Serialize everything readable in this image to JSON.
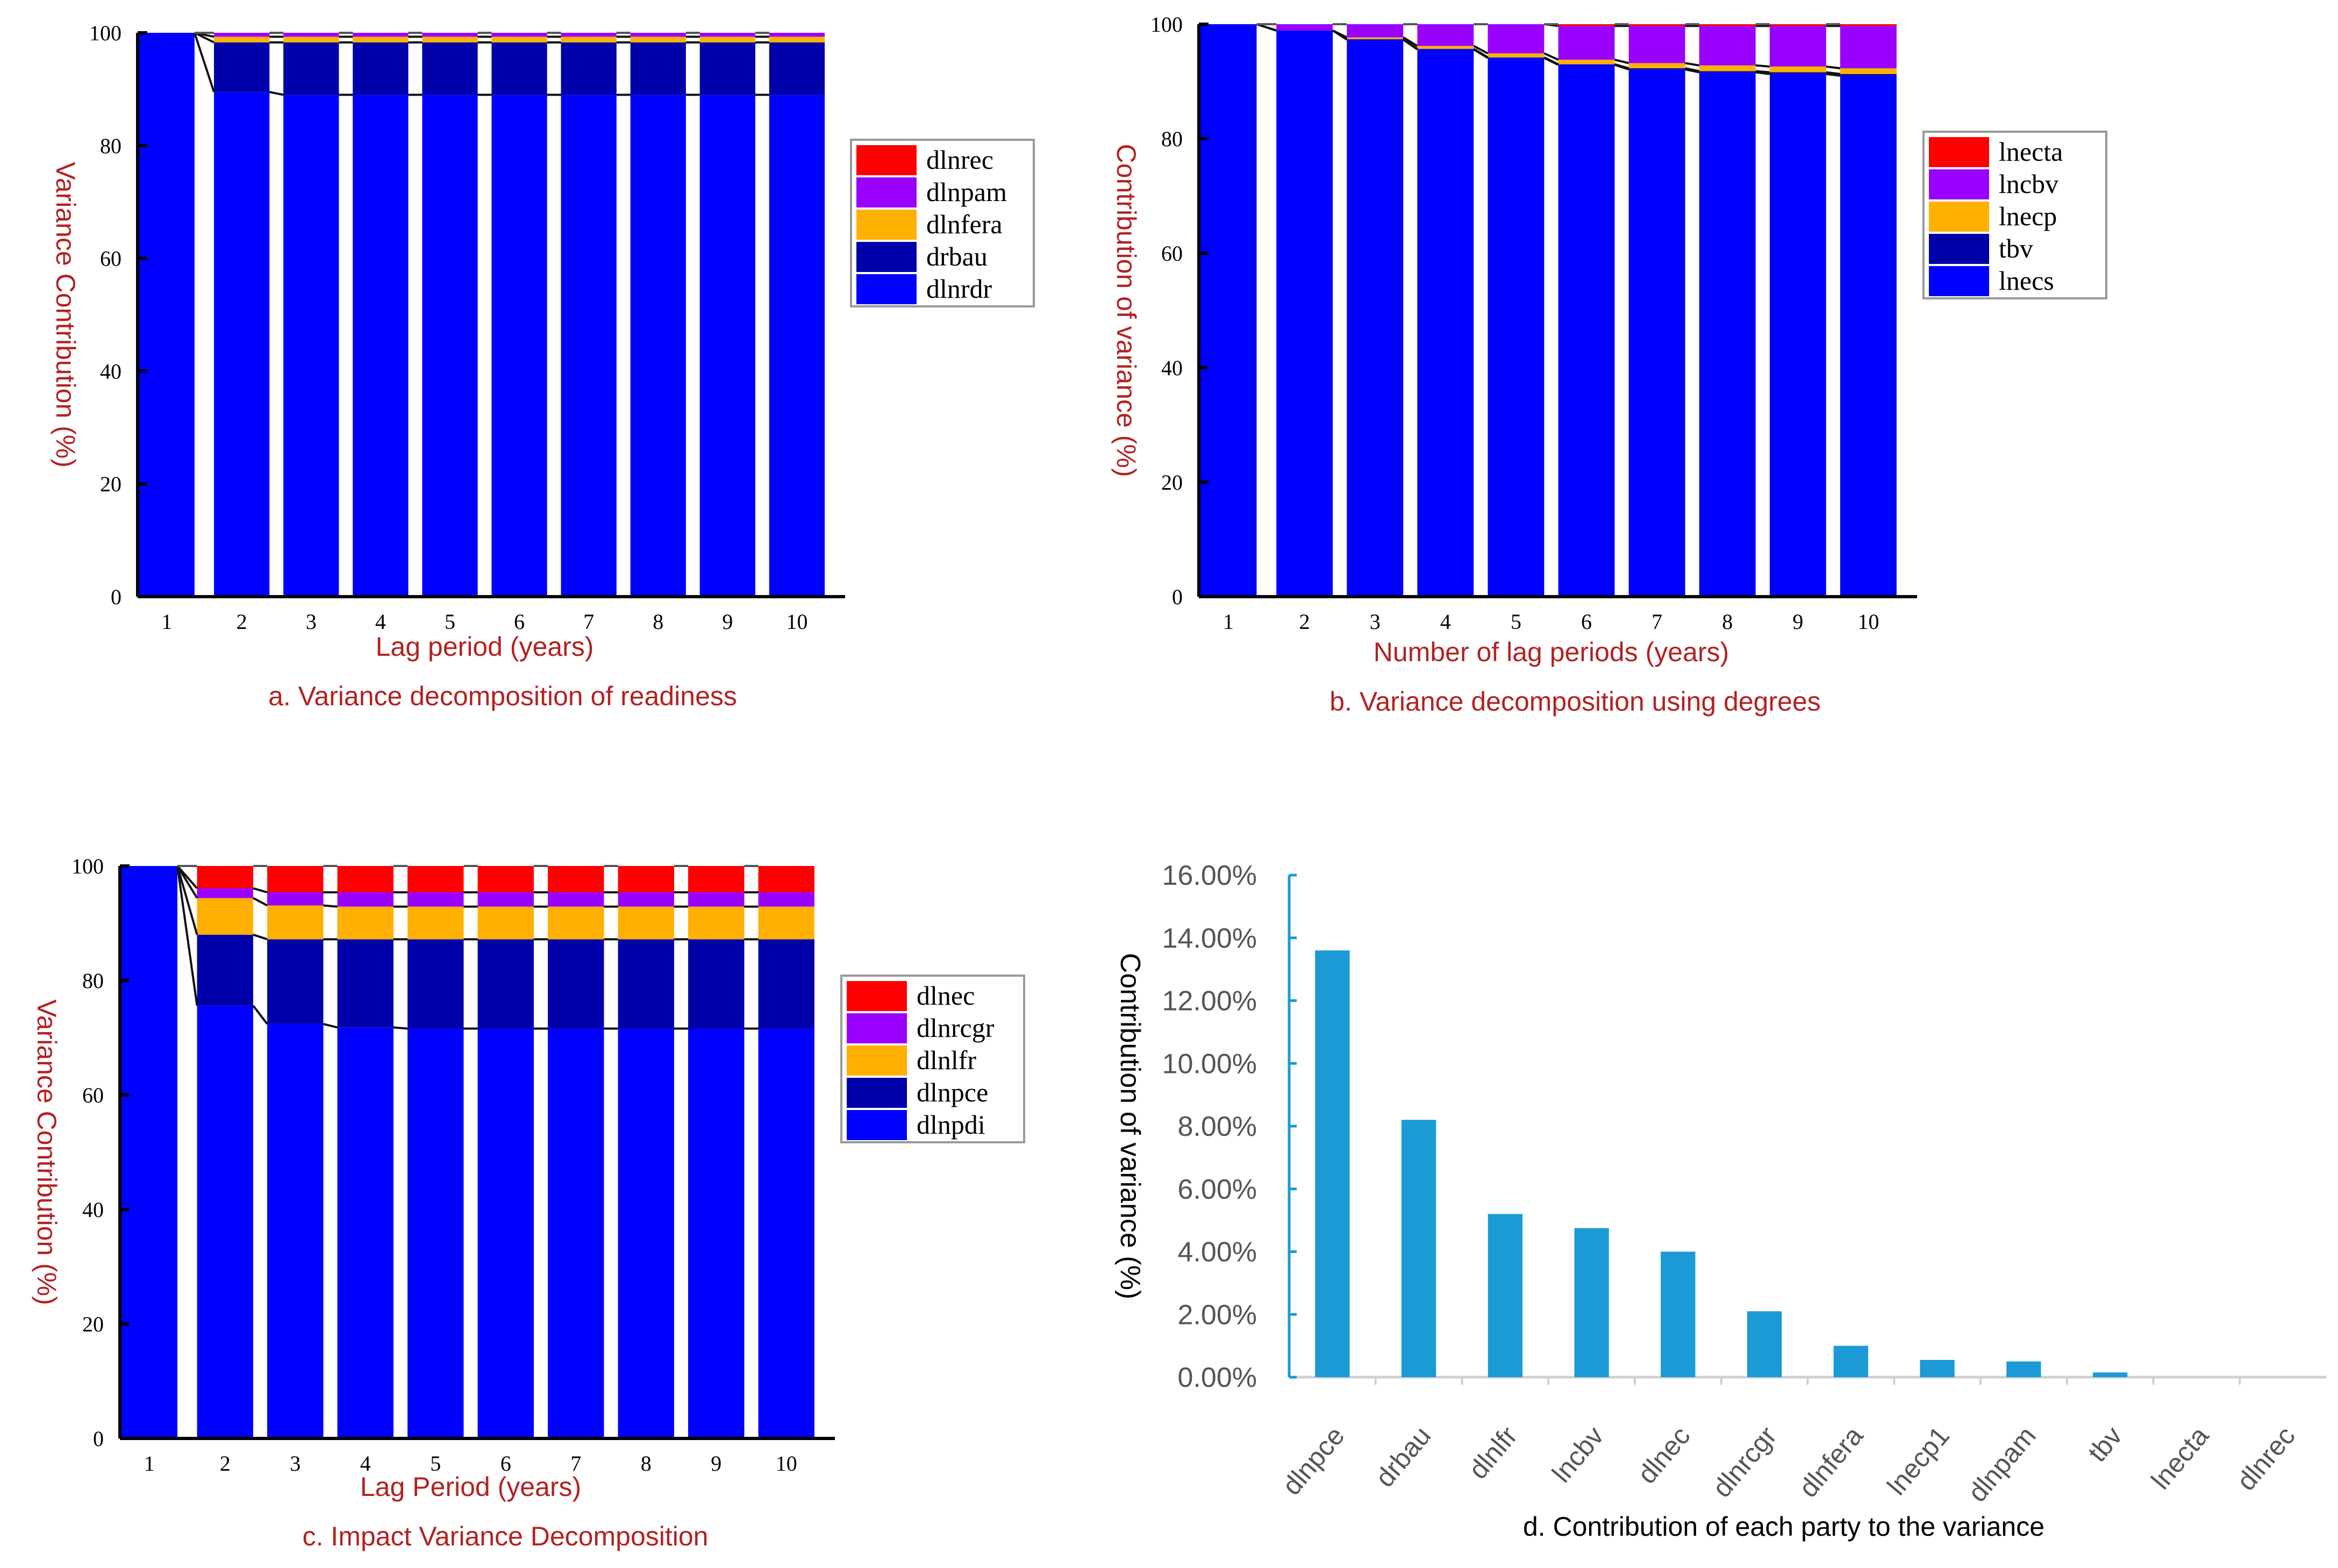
{
  "chart_data": [
    {
      "id": "a",
      "type": "bar",
      "stacked": true,
      "title": "a.  Variance decomposition of readiness",
      "xlabel": "Lag period (years)",
      "ylabel": "Variance Contribution (%)",
      "ylim": [
        0,
        100
      ],
      "yticks": [
        "0",
        "20",
        "40",
        "60",
        "80",
        "100"
      ],
      "categories": [
        "1",
        "2",
        "3",
        "4",
        "5",
        "6",
        "7",
        "8",
        "9",
        "10"
      ],
      "legend_position": "right",
      "series": [
        {
          "name": "dlnrdr",
          "color": "#0000ff",
          "values": [
            100,
            89.5,
            89.0,
            89.0,
            89.0,
            89.0,
            89.0,
            89.0,
            89.0,
            89.0
          ]
        },
        {
          "name": "drbau",
          "color": "#0000aa",
          "values": [
            0,
            8.8,
            9.3,
            9.3,
            9.3,
            9.3,
            9.3,
            9.3,
            9.3,
            9.3
          ]
        },
        {
          "name": "dlnfera",
          "color": "#ffb000",
          "values": [
            0,
            1.0,
            1.0,
            1.0,
            1.0,
            1.0,
            1.0,
            1.0,
            1.0,
            1.0
          ]
        },
        {
          "name": "dlnpam",
          "color": "#9900ff",
          "values": [
            0,
            0.7,
            0.7,
            0.7,
            0.7,
            0.7,
            0.7,
            0.7,
            0.7,
            0.7
          ]
        },
        {
          "name": "dlnrec",
          "color": "#ff0000",
          "values": [
            0,
            0,
            0,
            0,
            0,
            0,
            0,
            0,
            0,
            0
          ]
        }
      ]
    },
    {
      "id": "b",
      "type": "bar",
      "stacked": true,
      "title": "b.  Variance decomposition using degrees",
      "xlabel": "Number of lag periods (years)",
      "ylabel": "Contribution of variance (%)",
      "ylim": [
        0,
        100
      ],
      "yticks": [
        "0",
        "20",
        "40",
        "60",
        "80",
        "100"
      ],
      "categories": [
        "1",
        "2",
        "3",
        "4",
        "5",
        "6",
        "7",
        "8",
        "9",
        "10"
      ],
      "legend_position": "right",
      "series": [
        {
          "name": "lnecs",
          "color": "#0000ff",
          "values": [
            100,
            98.9,
            97.3,
            95.6,
            94.1,
            92.9,
            92.1,
            91.6,
            91.3,
            91.0
          ]
        },
        {
          "name": "tbv",
          "color": "#0000aa",
          "values": [
            0,
            0,
            0.1,
            0.1,
            0.1,
            0.1,
            0.2,
            0.2,
            0.3,
            0.3
          ]
        },
        {
          "name": "lnecp",
          "color": "#ffb000",
          "values": [
            0,
            0,
            0.3,
            0.5,
            0.7,
            0.8,
            0.9,
            1.0,
            1.0,
            1.0
          ]
        },
        {
          "name": "lncbv",
          "color": "#9900ff",
          "values": [
            0,
            1.1,
            2.3,
            3.8,
            5.1,
            5.9,
            6.5,
            6.9,
            7.1,
            7.4
          ]
        },
        {
          "name": "lnecta",
          "color": "#ff0000",
          "values": [
            0,
            0,
            0,
            0,
            0,
            0.3,
            0.3,
            0.3,
            0.3,
            0.3
          ]
        }
      ]
    },
    {
      "id": "c",
      "type": "bar",
      "stacked": true,
      "title": "c.  Impact Variance Decomposition",
      "xlabel": "Lag Period (years)",
      "ylabel": "Variance Contribution (%)",
      "ylim": [
        0,
        100
      ],
      "yticks": [
        "0",
        "20",
        "40",
        "60",
        "80",
        "100"
      ],
      "categories": [
        "1",
        "2",
        "3",
        "4",
        "5",
        "6",
        "7",
        "8",
        "9",
        "10"
      ],
      "legend_position": "right",
      "series": [
        {
          "name": "dlnpdi",
          "color": "#0000ff",
          "values": [
            100,
            75.6,
            72.4,
            71.8,
            71.6,
            71.6,
            71.6,
            71.6,
            71.6,
            71.6
          ]
        },
        {
          "name": "dlnpce",
          "color": "#0000aa",
          "values": [
            0,
            12.4,
            14.8,
            15.4,
            15.6,
            15.6,
            15.6,
            15.6,
            15.6,
            15.6
          ]
        },
        {
          "name": "dlnlfr",
          "color": "#ffb000",
          "values": [
            0,
            6.4,
            5.9,
            5.7,
            5.7,
            5.7,
            5.7,
            5.7,
            5.7,
            5.7
          ]
        },
        {
          "name": "dlnrcgr",
          "color": "#9900ff",
          "values": [
            0,
            1.7,
            2.3,
            2.5,
            2.5,
            2.5,
            2.5,
            2.5,
            2.5,
            2.5
          ]
        },
        {
          "name": "dlnec",
          "color": "#ff0000",
          "values": [
            0,
            3.9,
            4.6,
            4.6,
            4.6,
            4.6,
            4.6,
            4.6,
            4.6,
            4.6
          ]
        }
      ]
    },
    {
      "id": "d",
      "type": "bar",
      "title": "d.  Contribution of each party to the variance",
      "xlabel": "",
      "ylabel": "Contribution of variance (%)",
      "ylim": [
        0,
        16
      ],
      "yticks": [
        "0.00%",
        "2.00%",
        "4.00%",
        "6.00%",
        "8.00%",
        "10.00%",
        "12.00%",
        "14.00%",
        "16.00%"
      ],
      "categories": [
        "dlnpce",
        "drbau",
        "dlnlfr",
        "lncbv",
        "dlnec",
        "dlnrcgr",
        "dlnfera",
        "lnecp1",
        "dlnpam",
        "tbv",
        "lnecta",
        "dlnrec"
      ],
      "values": [
        13.6,
        8.2,
        5.2,
        4.75,
        4.0,
        2.1,
        1.0,
        0.55,
        0.5,
        0.15,
        0,
        0
      ],
      "color": "#1b9ad6",
      "grid": false
    }
  ]
}
